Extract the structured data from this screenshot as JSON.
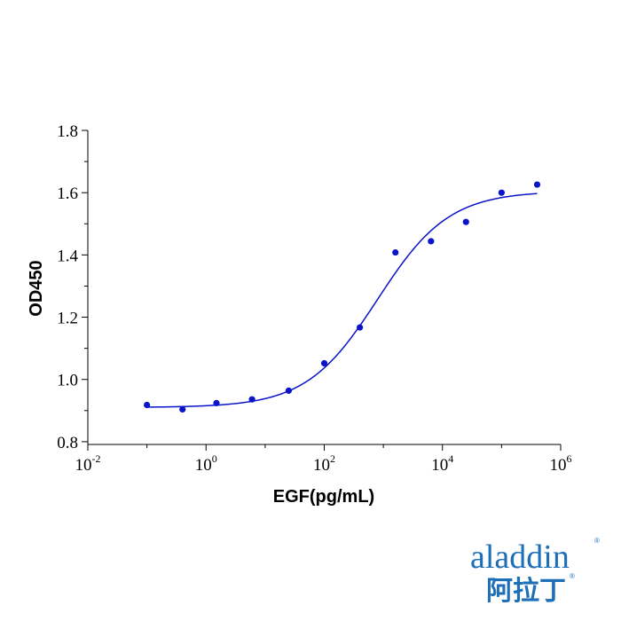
{
  "chart_data": {
    "type": "scatter",
    "xlabel": "EGF(pg/mL)",
    "ylabel": "OD450",
    "x_scale": "log10",
    "xlim": [
      0.01,
      1000000
    ],
    "ylim": [
      0.7,
      1.8
    ],
    "x_ticks": [
      {
        "value": 0.01,
        "base": "10",
        "exp": "-2"
      },
      {
        "value": 1,
        "base": "10",
        "exp": "0"
      },
      {
        "value": 100,
        "base": "10",
        "exp": "2"
      },
      {
        "value": 10000,
        "base": "10",
        "exp": "4"
      },
      {
        "value": 1000000,
        "base": "10",
        "exp": "6"
      }
    ],
    "y_ticks": [
      {
        "value": 0.8,
        "label": "0.8"
      },
      {
        "value": 1.0,
        "label": "1.0"
      },
      {
        "value": 1.2,
        "label": "1.2"
      },
      {
        "value": 1.4,
        "label": "1.4"
      },
      {
        "value": 1.6,
        "label": "1.6"
      },
      {
        "value": 1.8,
        "label": "1.8"
      }
    ],
    "series": [
      {
        "color": "#0a14c8",
        "points": [
          {
            "x": 0.1,
            "y": 0.918
          },
          {
            "x": 0.4,
            "y": 0.904
          },
          {
            "x": 1.5,
            "y": 0.924
          },
          {
            "x": 6,
            "y": 0.936
          },
          {
            "x": 25,
            "y": 0.964
          },
          {
            "x": 100,
            "y": 1.052
          },
          {
            "x": 400,
            "y": 1.167
          },
          {
            "x": 1600,
            "y": 1.408
          },
          {
            "x": 6400,
            "y": 1.444
          },
          {
            "x": 25000,
            "y": 1.506
          },
          {
            "x": 100000,
            "y": 1.6
          },
          {
            "x": 400000,
            "y": 1.626
          }
        ],
        "fit": {
          "type": "4PL",
          "bottom": 0.91,
          "top": 1.605,
          "ec50": 800,
          "hill": 0.72
        }
      }
    ],
    "grid": false,
    "legend": "none"
  },
  "logo": {
    "name": "aladdin",
    "chinese": "阿拉丁",
    "color": "#1d6fb8"
  }
}
